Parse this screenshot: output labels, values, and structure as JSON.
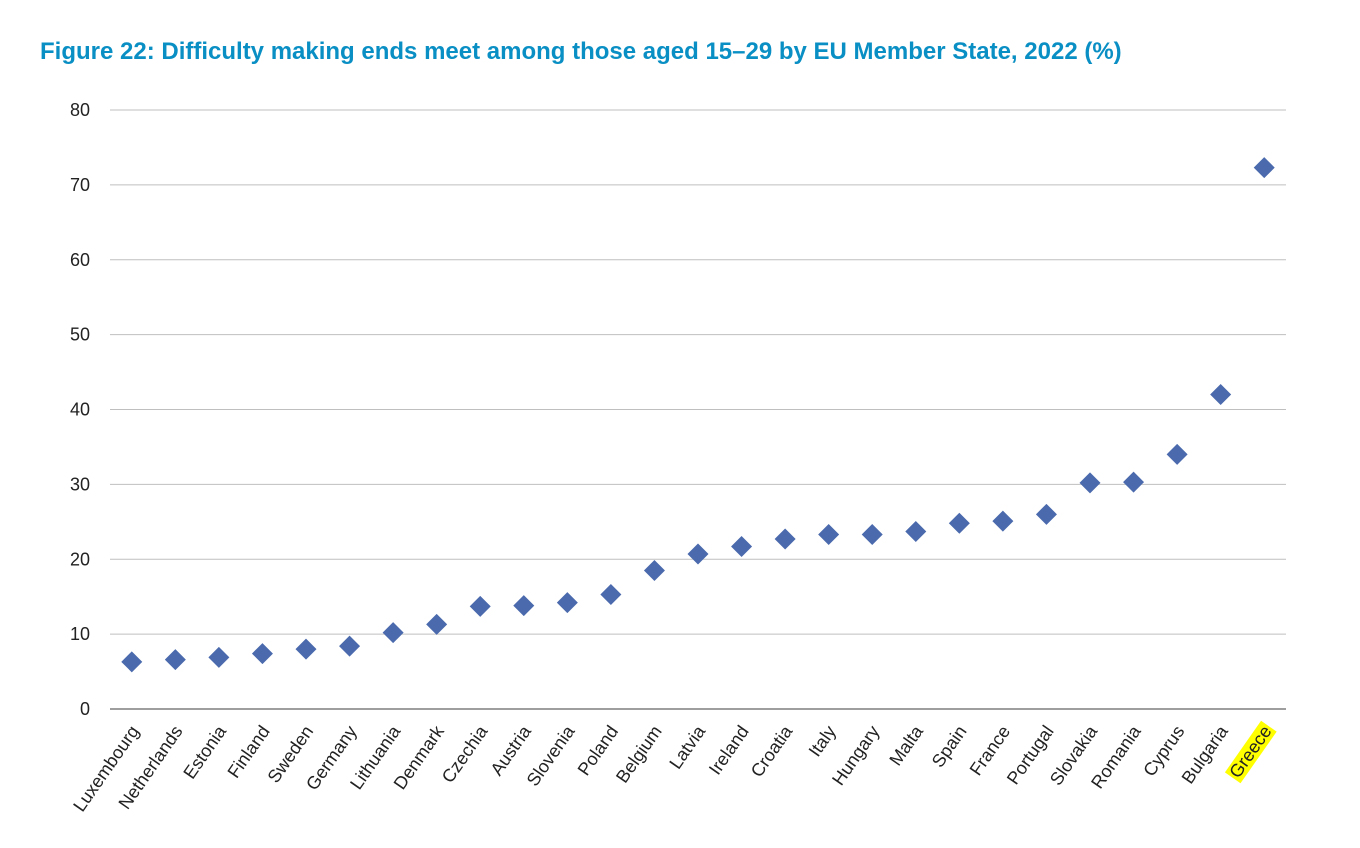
{
  "title": "Figure 22: Difficulty making ends meet among those aged 15–29 by EU Member State, 2022 (%)",
  "colors": {
    "title": "#0a8fc4",
    "marker": "#4a6aad",
    "gridline": "#bfbfbf",
    "highlight": "#ffff00"
  },
  "chart_data": {
    "type": "scatter",
    "marker": "diamond",
    "title": "Figure 22: Difficulty making ends meet among those aged 15–29 by EU Member State, 2022 (%)",
    "xlabel": "",
    "ylabel": "",
    "ylim": [
      0,
      80
    ],
    "yticks": [
      0,
      10,
      20,
      30,
      40,
      50,
      60,
      70,
      80
    ],
    "grid": true,
    "highlighted_category": "Greece",
    "categories": [
      "Luxembourg",
      "Netherlands",
      "Estonia",
      "Finland",
      "Sweden",
      "Germany",
      "Lithuania",
      "Denmark",
      "Czechia",
      "Austria",
      "Slovenia",
      "Poland",
      "Belgium",
      "Latvia",
      "Ireland",
      "Croatia",
      "Italy",
      "Hungary",
      "Malta",
      "Spain",
      "France",
      "Portugal",
      "Slovakia",
      "Romania",
      "Cyprus",
      "Bulgaria",
      "Greece"
    ],
    "values": [
      6.3,
      6.6,
      6.9,
      7.4,
      8.0,
      8.4,
      10.2,
      11.3,
      13.7,
      13.8,
      14.2,
      15.3,
      18.5,
      20.7,
      21.7,
      22.7,
      23.3,
      23.3,
      23.7,
      24.8,
      25.1,
      26.0,
      30.2,
      30.3,
      34.0,
      42.0,
      72.3
    ]
  }
}
